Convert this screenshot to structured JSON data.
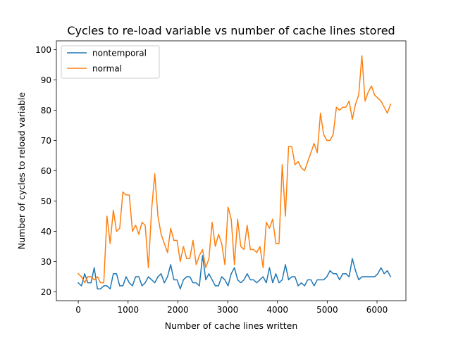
{
  "chart_data": {
    "type": "line",
    "title": "Cycles to re-load variable vs number of cache lines stored",
    "xlabel": "Number of cache lines written",
    "ylabel": "Number of cycles to reload variable",
    "xlim": [
      -440,
      6580
    ],
    "ylim": [
      17.1,
      102.9
    ],
    "xticks": [
      0,
      1000,
      2000,
      3000,
      4000,
      5000,
      6000
    ],
    "yticks": [
      20,
      30,
      40,
      50,
      60,
      70,
      80,
      90,
      100
    ],
    "grid": false,
    "legend_position": "upper-left",
    "x": [
      0,
      64,
      128,
      192,
      256,
      320,
      384,
      448,
      512,
      576,
      640,
      704,
      768,
      832,
      896,
      960,
      1024,
      1088,
      1152,
      1216,
      1280,
      1344,
      1408,
      1472,
      1536,
      1600,
      1664,
      1728,
      1792,
      1856,
      1920,
      1984,
      2048,
      2112,
      2176,
      2240,
      2304,
      2368,
      2432,
      2496,
      2560,
      2624,
      2688,
      2752,
      2816,
      2880,
      2944,
      3008,
      3072,
      3136,
      3200,
      3264,
      3328,
      3392,
      3456,
      3520,
      3584,
      3648,
      3712,
      3776,
      3840,
      3904,
      3968,
      4032,
      4096,
      4160,
      4224,
      4288,
      4352,
      4416,
      4480,
      4544,
      4608,
      4672,
      4736,
      4800,
      4864,
      4928,
      4992,
      5056,
      5120,
      5184,
      5248,
      5312,
      5376,
      5440,
      5504,
      5568,
      5632,
      5696,
      5760,
      5824,
      5888,
      5952,
      6016,
      6080,
      6144,
      6208,
      6272
    ],
    "series": [
      {
        "name": "nontemporal",
        "color": "#1f77b4",
        "values": [
          23,
          22,
          26,
          23,
          23,
          28,
          21,
          21,
          22,
          22,
          21,
          26,
          26,
          22,
          22,
          25,
          23,
          22,
          25,
          25,
          22,
          23,
          25,
          24,
          23,
          25,
          26,
          23,
          25,
          29,
          24,
          24,
          21,
          24,
          25,
          25,
          23,
          23,
          22,
          32,
          24,
          26,
          24,
          22,
          22,
          25,
          24,
          22,
          26,
          28,
          24,
          23,
          24,
          26,
          24,
          24,
          23,
          24,
          25,
          23,
          28,
          23,
          26,
          23,
          24,
          29,
          24,
          25,
          25,
          22,
          23,
          22,
          24,
          24,
          22,
          24,
          24,
          24,
          25,
          27,
          26,
          26,
          24,
          26,
          26,
          25,
          31,
          27,
          24,
          25,
          25,
          25,
          25,
          25,
          26,
          28,
          26,
          27,
          25
        ]
      },
      {
        "name": "normal",
        "color": "#ff7f0e",
        "values": [
          26,
          25,
          23,
          25,
          25,
          24,
          25,
          23,
          23,
          45,
          36,
          47,
          40,
          41,
          53,
          52,
          52,
          40,
          42,
          39,
          43,
          42,
          28,
          47,
          59,
          45,
          39,
          36,
          33,
          41,
          37,
          37,
          30,
          35,
          31,
          31,
          37,
          29,
          32,
          34,
          28,
          31,
          43,
          35,
          39,
          36,
          29,
          48,
          44,
          29,
          44,
          35,
          34,
          42,
          34,
          34,
          33,
          35,
          28,
          43,
          41,
          44,
          36,
          36,
          62,
          45,
          68,
          68,
          62,
          63,
          61,
          60,
          63,
          66,
          69,
          66,
          79,
          72,
          70,
          70,
          72,
          81,
          80,
          81,
          81,
          83,
          77,
          82,
          85,
          98,
          83,
          86,
          88,
          85,
          84,
          83,
          81,
          79,
          82
        ]
      }
    ]
  }
}
